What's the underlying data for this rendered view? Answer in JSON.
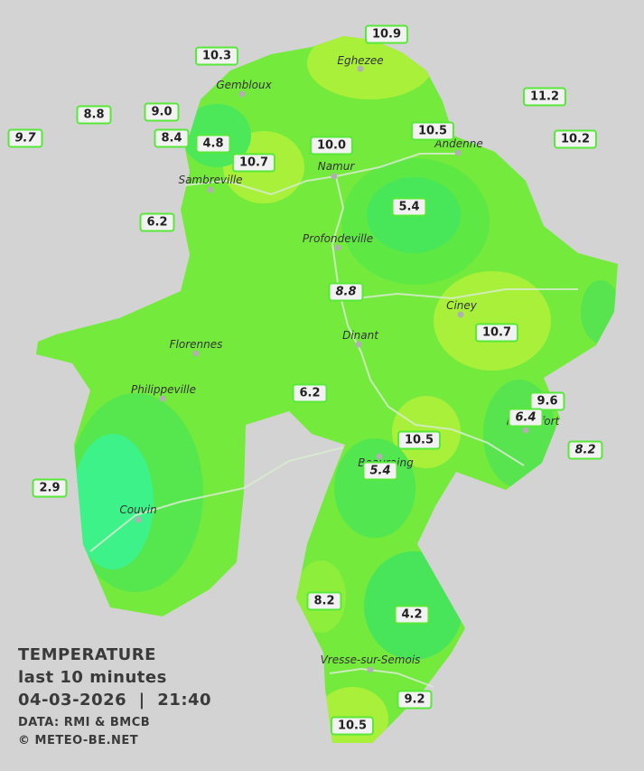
{
  "title": {
    "heading": "TEMPERATURE",
    "subtitle": "last 10 minutes",
    "datetime": "04-03-2026  |  21:40",
    "source": "DATA: RMI & BMCB",
    "copyright": "© METEO-BE.NET"
  },
  "cities": [
    {
      "name": "Eghezee"
    },
    {
      "name": "Gembloux"
    },
    {
      "name": "Andenne"
    },
    {
      "name": "Namur"
    },
    {
      "name": "Sambreville"
    },
    {
      "name": "Profondeville"
    },
    {
      "name": "Ciney"
    },
    {
      "name": "Dinant"
    },
    {
      "name": "Florennes"
    },
    {
      "name": "Philippeville"
    },
    {
      "name": "Rochefort"
    },
    {
      "name": "Beauraing"
    },
    {
      "name": "Couvin"
    },
    {
      "name": "Vresse-sur-Semois"
    }
  ],
  "stations": [
    {
      "value": "10.9"
    },
    {
      "value": "10.3"
    },
    {
      "value": "8.8"
    },
    {
      "value": "9.0"
    },
    {
      "value": "11.2"
    },
    {
      "value": "9.7"
    },
    {
      "value": "8.4"
    },
    {
      "value": "4.8"
    },
    {
      "value": "10.5"
    },
    {
      "value": "10.2"
    },
    {
      "value": "10.0"
    },
    {
      "value": "10.7"
    },
    {
      "value": "5.4"
    },
    {
      "value": "6.2"
    },
    {
      "value": "8.8"
    },
    {
      "value": "10.7"
    },
    {
      "value": "6.2"
    },
    {
      "value": "9.6"
    },
    {
      "value": "6.4"
    },
    {
      "value": "10.5"
    },
    {
      "value": "8.2"
    },
    {
      "value": "5.4"
    },
    {
      "value": "2.9"
    },
    {
      "value": "8.2"
    },
    {
      "value": "4.2"
    },
    {
      "value": "9.2"
    },
    {
      "value": "10.5"
    }
  ]
}
